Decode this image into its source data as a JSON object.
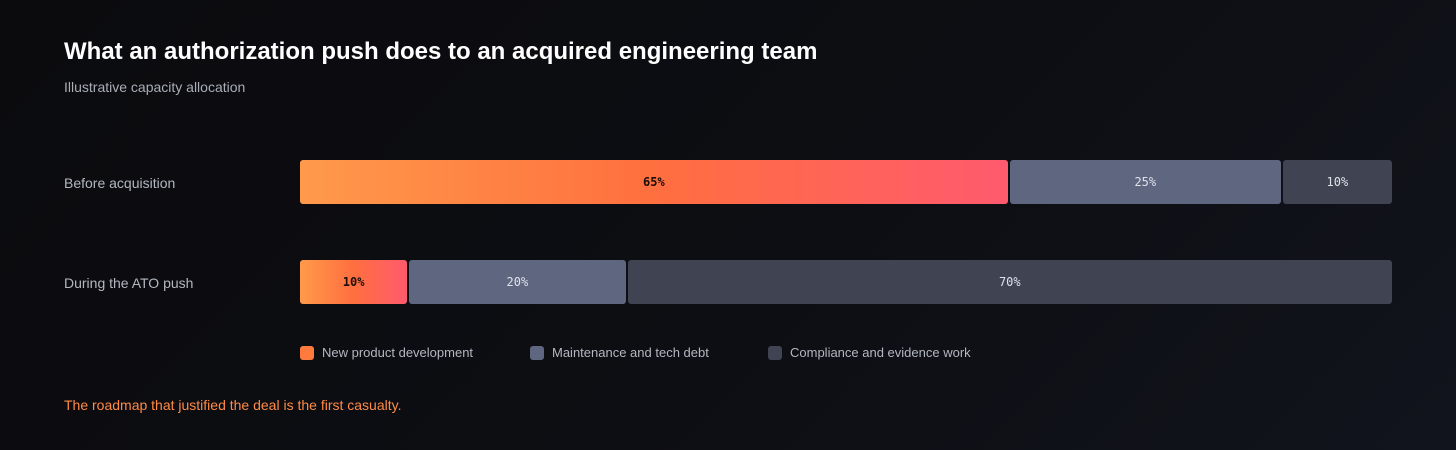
{
  "chart_data": {
    "type": "bar",
    "orientation": "horizontal",
    "stacked": true,
    "normalized": true,
    "title": "What an authorization push does to an acquired engineering team",
    "subtitle": "Illustrative capacity allocation",
    "categories": [
      "Before acquisition",
      "During the ATO push"
    ],
    "series": [
      {
        "name": "New product development",
        "values": [
          65,
          10
        ],
        "labels": [
          "65%",
          "10%"
        ],
        "color": "#ff7a3d",
        "gradient": [
          "#ff9a4a",
          "#ff6f3f",
          "#ff5a6e"
        ],
        "label_color": "#1a0f0a"
      },
      {
        "name": "Maintenance and tech debt",
        "values": [
          25,
          20
        ],
        "labels": [
          "25%",
          "20%"
        ],
        "color": "#5f6780",
        "label_color": "#dfe2e9"
      },
      {
        "name": "Compliance and evidence work",
        "values": [
          10,
          70
        ],
        "labels": [
          "10%",
          "70%"
        ],
        "color": "#3f4352",
        "label_color": "#dfe2e9"
      }
    ],
    "xlim": [
      0,
      100
    ],
    "grid": false,
    "legend": "bottom-left",
    "annotation": "The roadmap that justified the deal is the first casualty.",
    "annotation_color": "#ff8a45"
  }
}
